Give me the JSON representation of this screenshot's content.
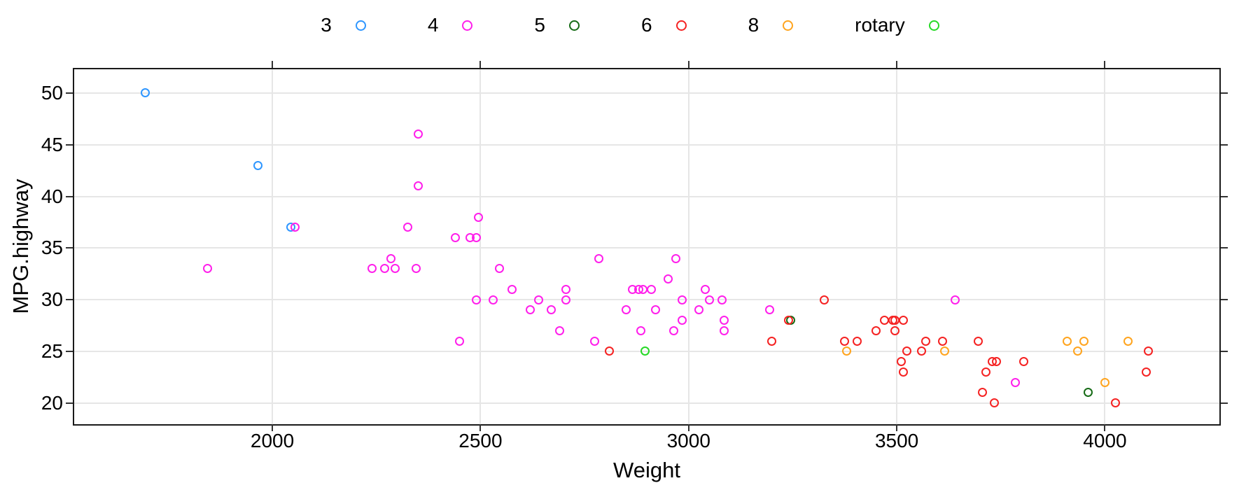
{
  "chart_data": {
    "type": "scatter",
    "title": "",
    "xlabel": "Weight",
    "ylabel": "MPG.highway",
    "x_ticks": [
      2000,
      2500,
      3000,
      3500,
      4000
    ],
    "y_ticks": [
      20,
      25,
      30,
      35,
      40,
      45,
      50
    ],
    "xlim": [
      1524,
      4275
    ],
    "ylim": [
      17.95,
      52.3
    ],
    "grid": true,
    "legend_position": "top",
    "grid_color": "#e6e6e6",
    "axis_color": "#1a1a1a",
    "series": [
      {
        "name": "3",
        "color": "#2E96FF",
        "points": [
          [
            1695,
            50
          ],
          [
            1965,
            43
          ],
          [
            2045,
            37
          ]
        ]
      },
      {
        "name": "4",
        "color": "#FF1FEB",
        "points": [
          [
            2055,
            37
          ],
          [
            2325,
            37
          ],
          [
            2350,
            46
          ],
          [
            2350,
            41
          ],
          [
            2495,
            38
          ],
          [
            2440,
            36
          ],
          [
            2475,
            36
          ],
          [
            2490,
            36
          ],
          [
            1845,
            33
          ],
          [
            2240,
            33
          ],
          [
            2270,
            33
          ],
          [
            2295,
            33
          ],
          [
            2345,
            33
          ],
          [
            2285,
            34
          ],
          [
            2545,
            33
          ],
          [
            2575,
            31
          ],
          [
            2490,
            30
          ],
          [
            2530,
            30
          ],
          [
            2640,
            30
          ],
          [
            2620,
            29
          ],
          [
            2670,
            29
          ],
          [
            2705,
            31
          ],
          [
            2705,
            30
          ],
          [
            2690,
            27
          ],
          [
            2450,
            26
          ],
          [
            2775,
            26
          ],
          [
            2785,
            34
          ],
          [
            2850,
            29
          ],
          [
            2865,
            31
          ],
          [
            2880,
            31
          ],
          [
            2890,
            31
          ],
          [
            2910,
            31
          ],
          [
            2920,
            29
          ],
          [
            2950,
            32
          ],
          [
            2970,
            34
          ],
          [
            2985,
            30
          ],
          [
            2985,
            28
          ],
          [
            2885,
            27
          ],
          [
            2965,
            27
          ],
          [
            3025,
            29
          ],
          [
            3040,
            31
          ],
          [
            3050,
            30
          ],
          [
            3080,
            30
          ],
          [
            3085,
            28
          ],
          [
            3085,
            27
          ],
          [
            3195,
            29
          ],
          [
            3640,
            30
          ],
          [
            3785,
            22
          ]
        ]
      },
      {
        "name": "5",
        "color": "#166B16",
        "points": [
          [
            3245,
            28
          ],
          [
            3960,
            21
          ]
        ]
      },
      {
        "name": "6",
        "color": "#F52222",
        "points": [
          [
            2810,
            25
          ],
          [
            3200,
            26
          ],
          [
            3240,
            28
          ],
          [
            3325,
            30
          ],
          [
            3375,
            26
          ],
          [
            3405,
            26
          ],
          [
            3450,
            27
          ],
          [
            3470,
            28
          ],
          [
            3490,
            28
          ],
          [
            3495,
            28
          ],
          [
            3515,
            28
          ],
          [
            3495,
            27
          ],
          [
            3510,
            24
          ],
          [
            3515,
            23
          ],
          [
            3525,
            25
          ],
          [
            3560,
            25
          ],
          [
            3570,
            26
          ],
          [
            3610,
            26
          ],
          [
            3695,
            26
          ],
          [
            3705,
            21
          ],
          [
            3715,
            23
          ],
          [
            3730,
            24
          ],
          [
            3740,
            24
          ],
          [
            3735,
            20
          ],
          [
            3805,
            24
          ],
          [
            4025,
            20
          ],
          [
            4100,
            23
          ],
          [
            4105,
            25
          ]
        ]
      },
      {
        "name": "8",
        "color": "#FFA41E",
        "points": [
          [
            3380,
            25
          ],
          [
            3615,
            25
          ],
          [
            3910,
            26
          ],
          [
            3935,
            25
          ],
          [
            3950,
            26
          ],
          [
            4000,
            22
          ],
          [
            4055,
            26
          ]
        ]
      },
      {
        "name": "rotary",
        "color": "#26D926",
        "points": [
          [
            2895,
            25
          ]
        ]
      }
    ]
  }
}
